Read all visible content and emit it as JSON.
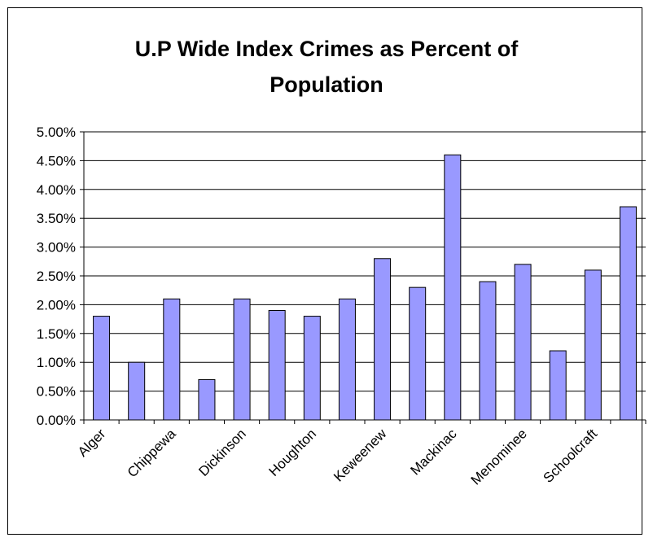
{
  "chart_data": {
    "type": "bar",
    "title_lines": [
      "U.P Wide Index Crimes as Percent of",
      "Population"
    ],
    "xlabel": "",
    "ylabel": "",
    "ylim": [
      0,
      0.05
    ],
    "y_ticks": [
      0,
      0.005,
      0.01,
      0.015,
      0.02,
      0.025,
      0.03,
      0.035,
      0.04,
      0.045,
      0.05
    ],
    "y_tick_labels": [
      "0.00%",
      "0.50%",
      "1.00%",
      "1.50%",
      "2.00%",
      "2.50%",
      "3.00%",
      "3.50%",
      "4.00%",
      "4.50%",
      "5.00%"
    ],
    "grid": true,
    "legend": "none",
    "bar_color": "#9999ff",
    "categories": [
      "Alger",
      "",
      "Chippewa",
      "",
      "Dickinson",
      "",
      "Houghton",
      "",
      "Keweenew",
      "",
      "Mackinac",
      "",
      "Menominee",
      "",
      "Schoolcraft",
      ""
    ],
    "values": [
      0.018,
      0.01,
      0.021,
      0.007,
      0.021,
      0.019,
      0.018,
      0.021,
      0.028,
      0.023,
      0.046,
      0.024,
      0.027,
      0.012,
      0.026,
      0.037
    ]
  }
}
